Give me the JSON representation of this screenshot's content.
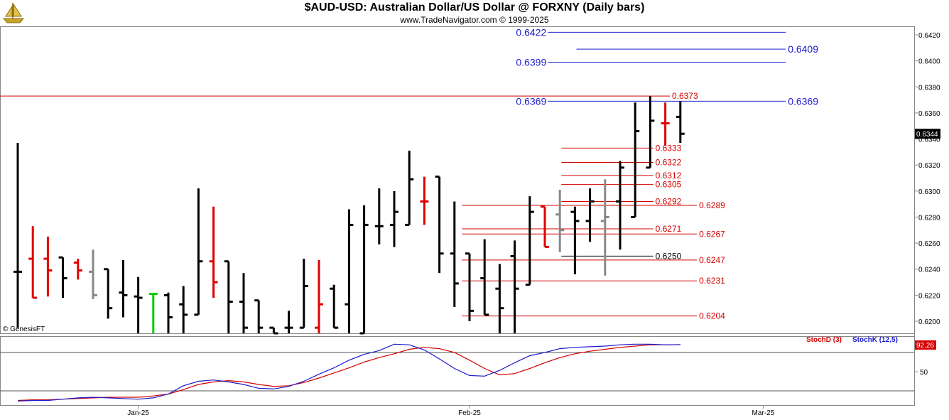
{
  "header": {
    "title": "$AUD-USD:  Australian Dollar/US Dollar @ FORXNY  (Daily bars)",
    "subtitle": "www.TradeNavigator.com © 1999-2025"
  },
  "logo_icon": "gold-sailing-ship-icon",
  "watermark": "© GenesisFT",
  "colors": {
    "up_bar": "#000000",
    "down_bar": "#e00000",
    "neutral_bar": "#888888",
    "green_bar": "#00cc00",
    "blue_level": "#1a1acc",
    "red_level": "#d40000",
    "stochd": "#d40000",
    "stochk": "#1a1acc",
    "last_price_bg": "#000000",
    "osc_value_bg": "#d40000"
  },
  "chart_data": {
    "type": "ohlc",
    "price_axis": {
      "ylim": [
        0.6184,
        0.6434
      ],
      "ticks": [
        "0.6420",
        "0.6400",
        "0.6380",
        "0.6360",
        "0.6340",
        "0.6320",
        "0.6300",
        "0.6280",
        "0.6260",
        "0.6240",
        "0.6220",
        "0.6200"
      ],
      "last_price": "0.6344"
    },
    "x_axis": {
      "labels": [
        {
          "text": "Jan-25",
          "bar": 8
        },
        {
          "text": "Feb-25",
          "bar": 30
        },
        {
          "text": "Mar-25",
          "bar": 49.5
        }
      ]
    },
    "bars": [
      {
        "h": 0.6337,
        "l": 0.6195,
        "o": 0.6238,
        "c": 0.6238,
        "color": "up"
      },
      {
        "h": 0.6273,
        "l": 0.6218,
        "o": 0.6248,
        "c": 0.6218,
        "color": "down"
      },
      {
        "h": 0.6265,
        "l": 0.6219,
        "o": 0.6248,
        "c": 0.6239,
        "color": "down"
      },
      {
        "h": 0.6249,
        "l": 0.6218,
        "o": 0.6249,
        "c": 0.6233,
        "color": "up"
      },
      {
        "h": 0.6248,
        "l": 0.6232,
        "o": 0.6245,
        "c": 0.6239,
        "color": "down"
      },
      {
        "h": 0.6255,
        "l": 0.6217,
        "o": 0.6238,
        "c": 0.622,
        "color": "neutral"
      },
      {
        "h": 0.624,
        "l": 0.6202,
        "o": 0.624,
        "c": 0.621,
        "color": "up"
      },
      {
        "h": 0.6247,
        "l": 0.6203,
        "o": 0.6222,
        "c": 0.622,
        "color": "up"
      },
      {
        "h": 0.6234,
        "l": 0.619,
        "o": 0.6219,
        "c": 0.6218,
        "color": "up"
      },
      {
        "h": 0.6221,
        "l": 0.619,
        "o": 0.6221,
        "c": 0.6221,
        "color": "green"
      },
      {
        "h": 0.6222,
        "l": 0.619,
        "o": 0.622,
        "c": 0.6203,
        "color": "up"
      },
      {
        "h": 0.6227,
        "l": 0.619,
        "o": 0.6213,
        "c": 0.6205,
        "color": "up"
      },
      {
        "h": 0.6302,
        "l": 0.6205,
        "o": 0.6205,
        "c": 0.6246,
        "color": "up"
      },
      {
        "h": 0.6288,
        "l": 0.6218,
        "o": 0.6246,
        "c": 0.623,
        "color": "down"
      },
      {
        "h": 0.6246,
        "l": 0.619,
        "o": 0.6246,
        "c": 0.6215,
        "color": "up"
      },
      {
        "h": 0.6237,
        "l": 0.619,
        "o": 0.6215,
        "c": 0.6195,
        "color": "up"
      },
      {
        "h": 0.6216,
        "l": 0.619,
        "o": 0.6216,
        "c": 0.6195,
        "color": "up"
      },
      {
        "h": 0.6195,
        "l": 0.619,
        "o": 0.6195,
        "c": 0.619,
        "color": "up"
      },
      {
        "h": 0.6208,
        "l": 0.619,
        "o": 0.6195,
        "c": 0.6195,
        "color": "up"
      },
      {
        "h": 0.6248,
        "l": 0.6195,
        "o": 0.6195,
        "c": 0.6227,
        "color": "up"
      },
      {
        "h": 0.6247,
        "l": 0.619,
        "o": 0.6195,
        "c": 0.6213,
        "color": "down"
      },
      {
        "h": 0.6228,
        "l": 0.6195,
        "o": 0.6225,
        "c": 0.6195,
        "color": "up"
      },
      {
        "h": 0.6286,
        "l": 0.619,
        "o": 0.6213,
        "c": 0.6274,
        "color": "up"
      },
      {
        "h": 0.6289,
        "l": 0.619,
        "o": 0.619,
        "c": 0.6274,
        "color": "up"
      },
      {
        "h": 0.6302,
        "l": 0.6259,
        "o": 0.6273,
        "c": 0.6273,
        "color": "up"
      },
      {
        "h": 0.63,
        "l": 0.6257,
        "o": 0.6274,
        "c": 0.6284,
        "color": "up"
      },
      {
        "h": 0.6331,
        "l": 0.6274,
        "o": 0.6274,
        "c": 0.6309,
        "color": "up"
      },
      {
        "h": 0.6311,
        "l": 0.6274,
        "o": 0.6292,
        "c": 0.6292,
        "color": "down"
      },
      {
        "h": 0.6311,
        "l": 0.6237,
        "o": 0.6311,
        "c": 0.6252,
        "color": "up"
      },
      {
        "h": 0.6292,
        "l": 0.6211,
        "o": 0.6252,
        "c": 0.6229,
        "color": "up"
      },
      {
        "h": 0.6252,
        "l": 0.62,
        "o": 0.6252,
        "c": 0.6208,
        "color": "up"
      },
      {
        "h": 0.6263,
        "l": 0.6205,
        "o": 0.6233,
        "c": 0.6205,
        "color": "up"
      },
      {
        "h": 0.6244,
        "l": 0.619,
        "o": 0.6225,
        "c": 0.621,
        "color": "up"
      },
      {
        "h": 0.6262,
        "l": 0.619,
        "o": 0.625,
        "c": 0.6225,
        "color": "up"
      },
      {
        "h": 0.6296,
        "l": 0.6228,
        "o": 0.6228,
        "c": 0.6284,
        "color": "up"
      },
      {
        "h": 0.6288,
        "l": 0.6257,
        "o": 0.6288,
        "c": 0.6257,
        "color": "down"
      },
      {
        "h": 0.6301,
        "l": 0.6253,
        "o": 0.6282,
        "c": 0.627,
        "color": "neutral"
      },
      {
        "h": 0.6288,
        "l": 0.6236,
        "o": 0.6284,
        "c": 0.6277,
        "color": "up"
      },
      {
        "h": 0.6302,
        "l": 0.6261,
        "o": 0.6277,
        "c": 0.6292,
        "color": "up"
      },
      {
        "h": 0.6309,
        "l": 0.6235,
        "o": 0.6277,
        "c": 0.628,
        "color": "neutral"
      },
      {
        "h": 0.6323,
        "l": 0.6255,
        "o": 0.6292,
        "c": 0.6318,
        "color": "up"
      },
      {
        "h": 0.6368,
        "l": 0.628,
        "o": 0.628,
        "c": 0.6346,
        "color": "up"
      },
      {
        "h": 0.6373,
        "l": 0.6318,
        "o": 0.6318,
        "c": 0.6354,
        "color": "up"
      },
      {
        "h": 0.6368,
        "l": 0.6335,
        "o": 0.6352,
        "c": 0.6352,
        "color": "down"
      },
      {
        "h": 0.6369,
        "l": 0.6337,
        "o": 0.6357,
        "c": 0.6344,
        "color": "up"
      }
    ],
    "levels": [
      {
        "value": "0.6422",
        "price": 0.6422,
        "color": "blue",
        "bar_start": 35.2,
        "bar_end": 51,
        "label_side": "left"
      },
      {
        "value": "0.6409",
        "price": 0.6409,
        "color": "blue",
        "bar_start": 37.1,
        "bar_end": 51,
        "label_side": "right"
      },
      {
        "value": "0.6399",
        "price": 0.6399,
        "color": "blue",
        "bar_start": 35.2,
        "bar_end": 51,
        "label_side": "left"
      },
      {
        "value": "0.6369",
        "price": 0.6369,
        "color": "blue",
        "bar_start": 35.2,
        "bar_end": 51,
        "label_side": "both"
      },
      {
        "value": "0.6373",
        "price": 0.6373,
        "color": "red",
        "bar_start": -1,
        "bar_end": 43.3,
        "label_side": "right"
      },
      {
        "value": "0.6333",
        "price": 0.6333,
        "color": "red",
        "bar_start": 36.1,
        "bar_end": 42.2,
        "label_side": "right"
      },
      {
        "value": "0.6322",
        "price": 0.6322,
        "color": "red",
        "bar_start": 36.1,
        "bar_end": 42.2,
        "label_side": "right"
      },
      {
        "value": "0.6312",
        "price": 0.6312,
        "color": "red",
        "bar_start": 36.1,
        "bar_end": 42.2,
        "label_side": "right"
      },
      {
        "value": "0.6305",
        "price": 0.6305,
        "color": "red",
        "bar_start": 36.1,
        "bar_end": 42.2,
        "label_side": "right"
      },
      {
        "value": "0.6292",
        "price": 0.6292,
        "color": "red",
        "bar_start": 36.1,
        "bar_end": 42.2,
        "label_side": "right"
      },
      {
        "value": "0.6289",
        "price": 0.6289,
        "color": "red",
        "bar_start": 29.5,
        "bar_end": 45.1,
        "label_side": "right"
      },
      {
        "value": "0.6271",
        "price": 0.6271,
        "color": "red",
        "bar_start": 29.5,
        "bar_end": 42.2,
        "label_side": "right"
      },
      {
        "value": "0.6267",
        "price": 0.6267,
        "color": "red",
        "bar_start": 29.5,
        "bar_end": 45.1,
        "label_side": "right"
      },
      {
        "value": "0.6250",
        "price": 0.625,
        "color": "black",
        "bar_start": 36.1,
        "bar_end": 42.2,
        "label_side": "right"
      },
      {
        "value": "0.6247",
        "price": 0.6247,
        "color": "red",
        "bar_start": 29.5,
        "bar_end": 45.1,
        "label_side": "right"
      },
      {
        "value": "0.6231",
        "price": 0.6231,
        "color": "red",
        "bar_start": 29.5,
        "bar_end": 45.1,
        "label_side": "right"
      },
      {
        "value": "0.6204",
        "price": 0.6204,
        "color": "red",
        "bar_start": 29.5,
        "bar_end": 45.1,
        "label_side": "right"
      }
    ],
    "oscillator": {
      "legend": [
        "StochD (3)",
        "StochK (12,5)"
      ],
      "ylim": [
        0,
        100
      ],
      "ticks": [
        "50"
      ],
      "current_value": "92.26",
      "guide_levels": [
        80,
        20
      ],
      "stochd": [
        5,
        6,
        6,
        7,
        8,
        9,
        10,
        10,
        10,
        12,
        15,
        22,
        30,
        34,
        36,
        34,
        30,
        27,
        28,
        33,
        40,
        48,
        56,
        65,
        72,
        78,
        85,
        88,
        86,
        80,
        68,
        55,
        45,
        47,
        55,
        64,
        72,
        78,
        82,
        85,
        88,
        90,
        92,
        92,
        92.3
      ],
      "stochk": [
        4,
        5,
        5,
        7,
        9,
        10,
        9,
        8,
        7,
        9,
        15,
        28,
        35,
        37,
        34,
        30,
        24,
        23,
        27,
        35,
        46,
        56,
        68,
        77,
        83,
        93,
        92,
        84,
        70,
        55,
        44,
        43,
        52,
        64,
        75,
        80,
        86,
        88,
        89,
        90,
        92,
        93,
        93,
        92,
        92.3
      ]
    }
  }
}
